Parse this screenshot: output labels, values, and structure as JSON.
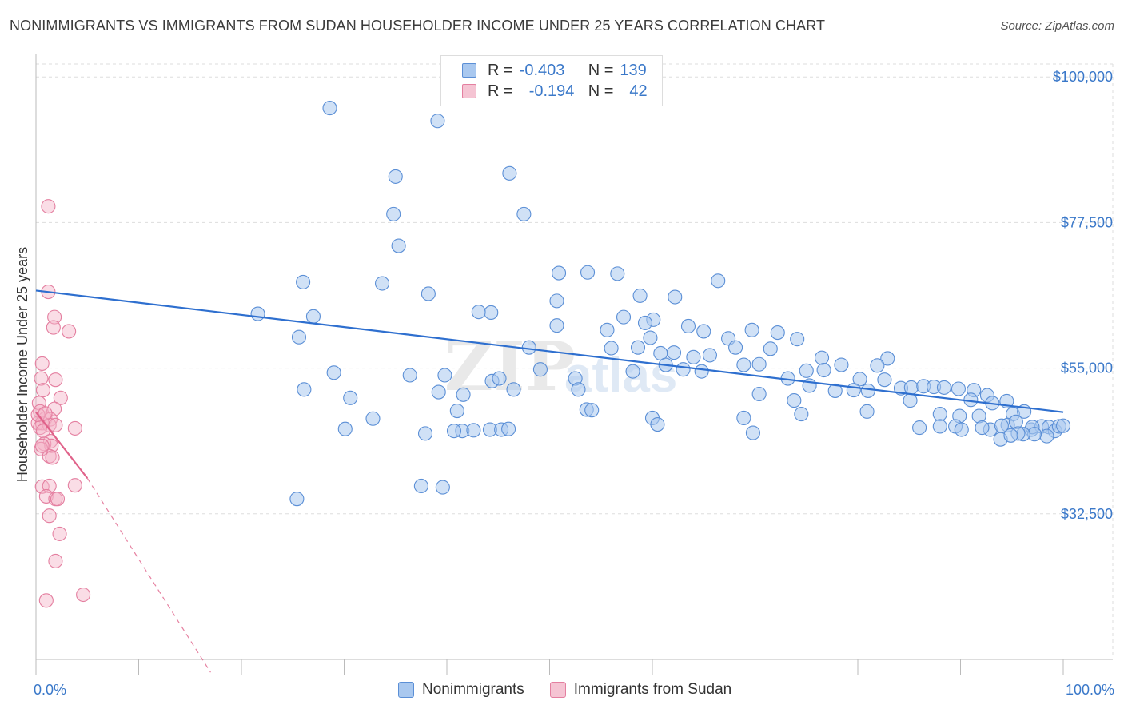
{
  "header": {
    "title": "NONIMMIGRANTS VS IMMIGRANTS FROM SUDAN HOUSEHOLDER INCOME UNDER 25 YEARS CORRELATION CHART",
    "source": "Source: ZipAtlas.com"
  },
  "legend": {
    "r_label": "R =",
    "n_label": "N =",
    "rows": [
      {
        "r": "-0.403",
        "n": "139"
      },
      {
        "r": "-0.194",
        "n": "42"
      }
    ]
  },
  "colors": {
    "blue_fill": "#a9c8ef",
    "blue_stroke": "#5b8fd6",
    "blue_line": "#2e6fcf",
    "pink_fill": "#f5b4c8",
    "pink_stroke": "#e47fa0",
    "pink_line": "#e0628a",
    "axis_text": "#3a78c9",
    "grid": "#dddddd"
  },
  "chart_data": {
    "type": "scatter",
    "title": "NONIMMIGRANTS VS IMMIGRANTS FROM SUDAN HOUSEHOLDER INCOME UNDER 25 YEARS CORRELATION CHART",
    "xlabel": "",
    "ylabel": "Householder Income Under 25 years",
    "x_unit": "%",
    "xlim": [
      0,
      100
    ],
    "ylim": [
      10000,
      108000
    ],
    "x_tick_labels": [
      "0.0%",
      "100.0%"
    ],
    "y_ticks": [
      32500,
      55000,
      77500,
      100000
    ],
    "y_tick_labels": [
      "$32,500",
      "$55,000",
      "$77,500",
      "$100,000"
    ],
    "grid": true,
    "legend_position": "top-center",
    "watermark": "ZIPatlas",
    "series": [
      {
        "name": "Nonimmigrants",
        "color": "#5b8fd6",
        "trendline": {
          "x": [
            0,
            100
          ],
          "y": [
            67000,
            48200
          ]
        },
        "points": [
          [
            28.6,
            95200
          ],
          [
            39.1,
            93200
          ],
          [
            35.0,
            84600
          ],
          [
            46.1,
            85100
          ],
          [
            34.8,
            78800
          ],
          [
            47.5,
            78800
          ],
          [
            35.3,
            73900
          ],
          [
            26.0,
            68300
          ],
          [
            33.7,
            68100
          ],
          [
            50.9,
            69700
          ],
          [
            53.7,
            69800
          ],
          [
            56.6,
            69600
          ],
          [
            66.4,
            68500
          ],
          [
            50.7,
            65400
          ],
          [
            62.2,
            66000
          ],
          [
            58.8,
            66200
          ],
          [
            38.2,
            66500
          ],
          [
            43.1,
            63700
          ],
          [
            21.6,
            63400
          ],
          [
            27.0,
            63000
          ],
          [
            44.3,
            63600
          ],
          [
            57.2,
            62900
          ],
          [
            60.1,
            62500
          ],
          [
            59.3,
            62000
          ],
          [
            50.7,
            61600
          ],
          [
            63.5,
            61500
          ],
          [
            55.6,
            60900
          ],
          [
            65.0,
            60700
          ],
          [
            69.7,
            60900
          ],
          [
            72.2,
            60500
          ],
          [
            25.6,
            59800
          ],
          [
            59.8,
            59700
          ],
          [
            67.4,
            59600
          ],
          [
            74.1,
            59500
          ],
          [
            68.1,
            58200
          ],
          [
            71.5,
            58000
          ],
          [
            56.0,
            58100
          ],
          [
            58.6,
            58200
          ],
          [
            48.0,
            58200
          ],
          [
            60.8,
            57300
          ],
          [
            62.1,
            57400
          ],
          [
            64.0,
            56700
          ],
          [
            65.6,
            57000
          ],
          [
            76.5,
            56600
          ],
          [
            82.9,
            56500
          ],
          [
            81.9,
            55400
          ],
          [
            78.4,
            55500
          ],
          [
            68.9,
            55500
          ],
          [
            70.4,
            55600
          ],
          [
            61.3,
            55500
          ],
          [
            63.0,
            54800
          ],
          [
            64.8,
            54500
          ],
          [
            49.1,
            54800
          ],
          [
            58.1,
            54500
          ],
          [
            76.7,
            54700
          ],
          [
            75.0,
            54600
          ],
          [
            80.2,
            53300
          ],
          [
            82.6,
            53200
          ],
          [
            29.0,
            54300
          ],
          [
            36.4,
            53900
          ],
          [
            39.8,
            53900
          ],
          [
            44.4,
            53000
          ],
          [
            45.1,
            53400
          ],
          [
            52.5,
            53400
          ],
          [
            73.2,
            53400
          ],
          [
            75.3,
            52300
          ],
          [
            77.8,
            51500
          ],
          [
            79.6,
            51600
          ],
          [
            81.0,
            51500
          ],
          [
            84.2,
            51900
          ],
          [
            85.2,
            52000
          ],
          [
            86.4,
            52200
          ],
          [
            87.4,
            52100
          ],
          [
            88.4,
            52000
          ],
          [
            89.8,
            51800
          ],
          [
            91.3,
            51600
          ],
          [
            26.1,
            51700
          ],
          [
            30.6,
            50400
          ],
          [
            39.2,
            51300
          ],
          [
            41.6,
            50900
          ],
          [
            46.5,
            51700
          ],
          [
            52.8,
            51700
          ],
          [
            70.4,
            51000
          ],
          [
            73.8,
            50000
          ],
          [
            85.1,
            50000
          ],
          [
            91.0,
            50100
          ],
          [
            92.6,
            50800
          ],
          [
            93.1,
            49600
          ],
          [
            94.5,
            49900
          ],
          [
            41.0,
            48400
          ],
          [
            53.6,
            48600
          ],
          [
            54.1,
            48500
          ],
          [
            74.5,
            47900
          ],
          [
            80.9,
            48300
          ],
          [
            88.0,
            47900
          ],
          [
            89.9,
            47600
          ],
          [
            91.8,
            47600
          ],
          [
            95.1,
            47900
          ],
          [
            96.2,
            48300
          ],
          [
            32.8,
            47200
          ],
          [
            60.0,
            47300
          ],
          [
            68.9,
            47300
          ],
          [
            89.5,
            46000
          ],
          [
            90.1,
            45500
          ],
          [
            92.9,
            45500
          ],
          [
            94.6,
            46200
          ],
          [
            95.4,
            46700
          ],
          [
            96.9,
            45500
          ],
          [
            97.9,
            46000
          ],
          [
            98.6,
            45900
          ],
          [
            99.2,
            45300
          ],
          [
            99.6,
            46000
          ],
          [
            100.0,
            46100
          ],
          [
            60.5,
            46300
          ],
          [
            30.1,
            45600
          ],
          [
            41.5,
            45300
          ],
          [
            44.2,
            45500
          ],
          [
            45.3,
            45500
          ],
          [
            92.1,
            45800
          ],
          [
            86.0,
            45800
          ],
          [
            88.0,
            46000
          ],
          [
            94.0,
            46100
          ],
          [
            97.0,
            45900
          ],
          [
            98.4,
            44500
          ],
          [
            97.2,
            44800
          ],
          [
            96.1,
            44800
          ],
          [
            95.6,
            44900
          ],
          [
            69.8,
            45000
          ],
          [
            37.9,
            44900
          ],
          [
            42.6,
            45400
          ],
          [
            46.0,
            45600
          ],
          [
            40.7,
            45300
          ],
          [
            37.5,
            36800
          ],
          [
            39.6,
            36600
          ],
          [
            25.4,
            34800
          ],
          [
            93.9,
            44000
          ],
          [
            94.9,
            44600
          ]
        ]
      },
      {
        "name": "Immigrants from Sudan",
        "color": "#e47fa0",
        "trendline": {
          "x": [
            0,
            5.0
          ],
          "y": [
            48200,
            38000
          ]
        },
        "trendline_extension": {
          "x": [
            5.0,
            17.0
          ],
          "y": [
            38000,
            8000
          ]
        },
        "points": [
          [
            1.2,
            80000
          ],
          [
            1.2,
            66800
          ],
          [
            1.8,
            62900
          ],
          [
            1.7,
            61300
          ],
          [
            3.2,
            60700
          ],
          [
            0.6,
            55700
          ],
          [
            0.5,
            53400
          ],
          [
            1.9,
            53200
          ],
          [
            0.7,
            51600
          ],
          [
            2.4,
            50400
          ],
          [
            0.3,
            49600
          ],
          [
            0.4,
            48300
          ],
          [
            1.8,
            48700
          ],
          [
            0.9,
            47200
          ],
          [
            1.4,
            47100
          ],
          [
            0.2,
            46500
          ],
          [
            0.6,
            46500
          ],
          [
            1.3,
            46200
          ],
          [
            1.9,
            46200
          ],
          [
            0.4,
            45800
          ],
          [
            3.8,
            45700
          ],
          [
            0.7,
            45300
          ],
          [
            1.4,
            43700
          ],
          [
            0.8,
            43300
          ],
          [
            1.5,
            43000
          ],
          [
            0.5,
            42500
          ],
          [
            1.3,
            41400
          ],
          [
            1.6,
            41200
          ],
          [
            0.6,
            36700
          ],
          [
            1.3,
            36800
          ],
          [
            3.8,
            36900
          ],
          [
            1.0,
            35200
          ],
          [
            1.9,
            34800
          ],
          [
            2.1,
            34800
          ],
          [
            1.3,
            32200
          ],
          [
            2.3,
            29400
          ],
          [
            1.9,
            25200
          ],
          [
            0.6,
            43000
          ],
          [
            4.6,
            20000
          ],
          [
            1.0,
            19100
          ],
          [
            0.2,
            47800
          ],
          [
            0.9,
            48000
          ]
        ]
      }
    ]
  },
  "bottom_legend": {
    "items": [
      "Nonimmigrants",
      "Immigrants from Sudan"
    ]
  }
}
